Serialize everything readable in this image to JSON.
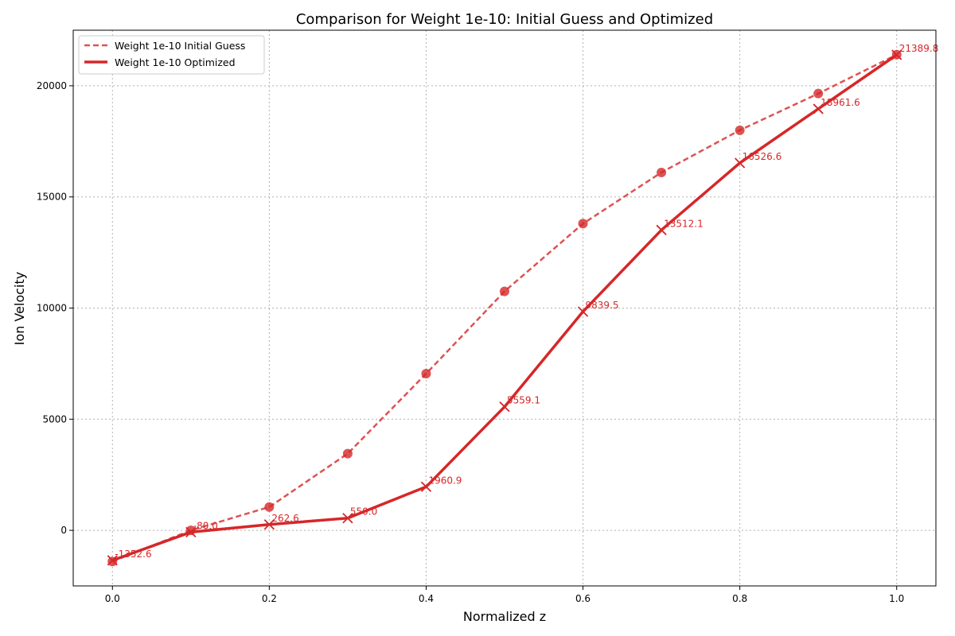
{
  "chart_data": {
    "type": "line",
    "title": "Comparison for Weight 1e-10: Initial Guess and Optimized",
    "xlabel": "Normalized z",
    "ylabel": "Ion Velocity",
    "x": [
      0.0,
      0.1,
      0.2,
      0.3,
      0.4,
      0.5,
      0.6,
      0.7,
      0.8,
      0.9,
      1.0
    ],
    "xlim": [
      -0.05,
      1.05
    ],
    "ylim": [
      -2500,
      22500
    ],
    "xticks": [
      0.0,
      0.2,
      0.4,
      0.6,
      0.8,
      1.0
    ],
    "xtick_labels": [
      "0.0",
      "0.2",
      "0.4",
      "0.6",
      "0.8",
      "1.0"
    ],
    "yticks": [
      0,
      5000,
      10000,
      15000,
      20000
    ],
    "ytick_labels": [
      "0",
      "5000",
      "10000",
      "15000",
      "20000"
    ],
    "grid": true,
    "legend_position": "top-left",
    "series": [
      {
        "name": "Weight 1e-10 Initial Guess",
        "style": "dashed",
        "marker": "circle",
        "color": "#d62728",
        "values": [
          -1400,
          0,
          1050,
          3450,
          7050,
          10750,
          13800,
          16100,
          18000,
          19650,
          21400
        ]
      },
      {
        "name": "Weight 1e-10 Optimized",
        "style": "solid",
        "marker": "x",
        "color": "#d62728",
        "values": [
          -1352.6,
          -80.0,
          262.6,
          550.0,
          1960.9,
          5559.1,
          9839.5,
          13512.1,
          16526.6,
          18961.6,
          21389.8
        ],
        "data_labels": [
          "-1352.6",
          "-80.0",
          "262.6",
          "550.0",
          "1960.9",
          "5559.1",
          "9839.5",
          "13512.1",
          "16526.6",
          "18961.6",
          "21389.8"
        ]
      }
    ]
  }
}
